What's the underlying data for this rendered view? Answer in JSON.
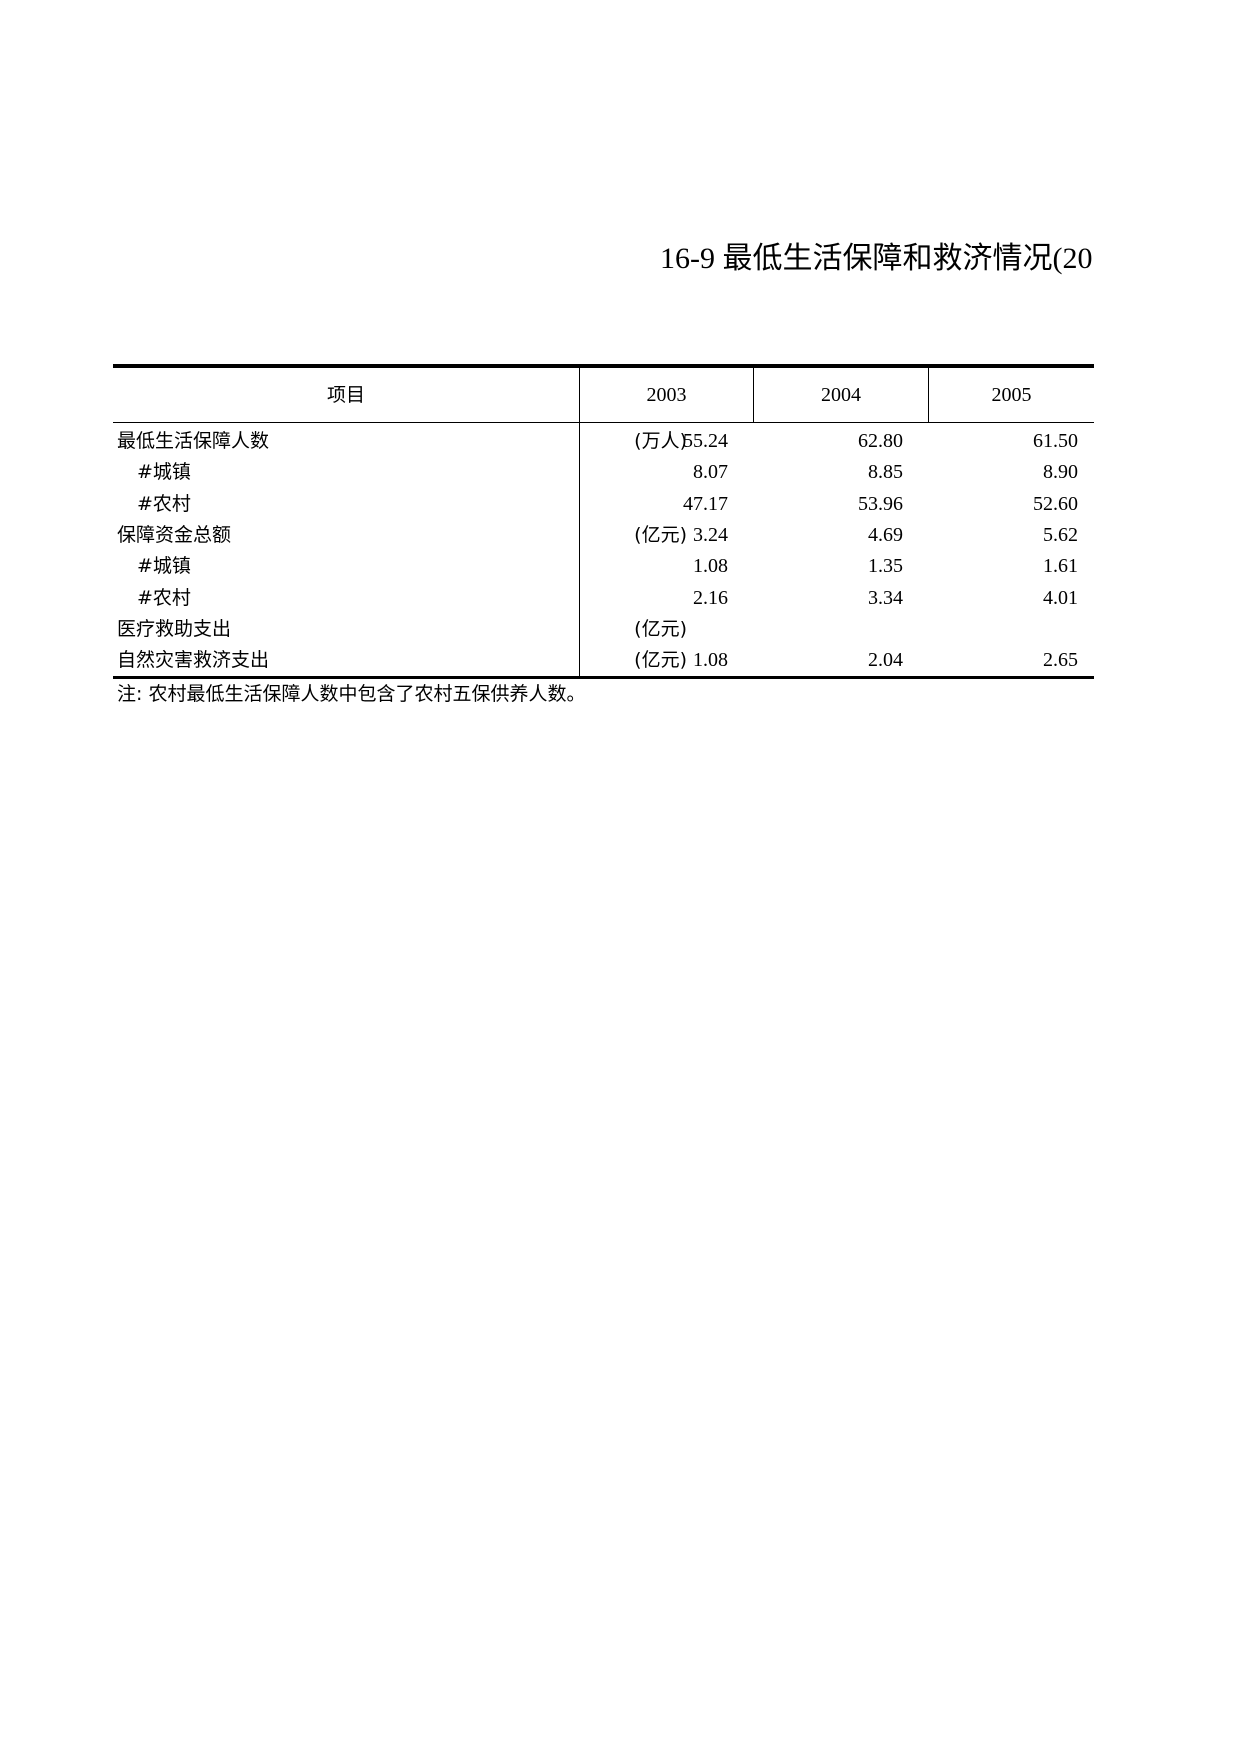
{
  "title": "16-9 最低生活保障和救济情况(20",
  "table": {
    "headers": [
      "项目",
      "2003",
      "2004",
      "2005"
    ],
    "rows": [
      {
        "label": "最低生活保障人数",
        "unit": "(万人)",
        "sub": false,
        "values": [
          "55.24",
          "62.80",
          "61.50"
        ]
      },
      {
        "label": "#城镇",
        "unit": "",
        "sub": true,
        "values": [
          "8.07",
          "8.85",
          "8.90"
        ]
      },
      {
        "label": "#农村",
        "unit": "",
        "sub": true,
        "values": [
          "47.17",
          "53.96",
          "52.60"
        ]
      },
      {
        "label": "保障资金总额",
        "unit": "(亿元)",
        "sub": false,
        "values": [
          "3.24",
          "4.69",
          "5.62"
        ]
      },
      {
        "label": "#城镇",
        "unit": "",
        "sub": true,
        "values": [
          "1.08",
          "1.35",
          "1.61"
        ]
      },
      {
        "label": "#农村",
        "unit": "",
        "sub": true,
        "values": [
          "2.16",
          "3.34",
          "4.01"
        ]
      },
      {
        "label": "医疗救助支出",
        "unit": "(亿元)",
        "sub": false,
        "values": [
          "",
          "",
          ""
        ]
      },
      {
        "label": "自然灾害救济支出",
        "unit": "(亿元)",
        "sub": false,
        "values": [
          "1.08",
          "2.04",
          "2.65"
        ]
      }
    ]
  },
  "note": "注: 农村最低生活保障人数中包含了农村五保供养人数。"
}
